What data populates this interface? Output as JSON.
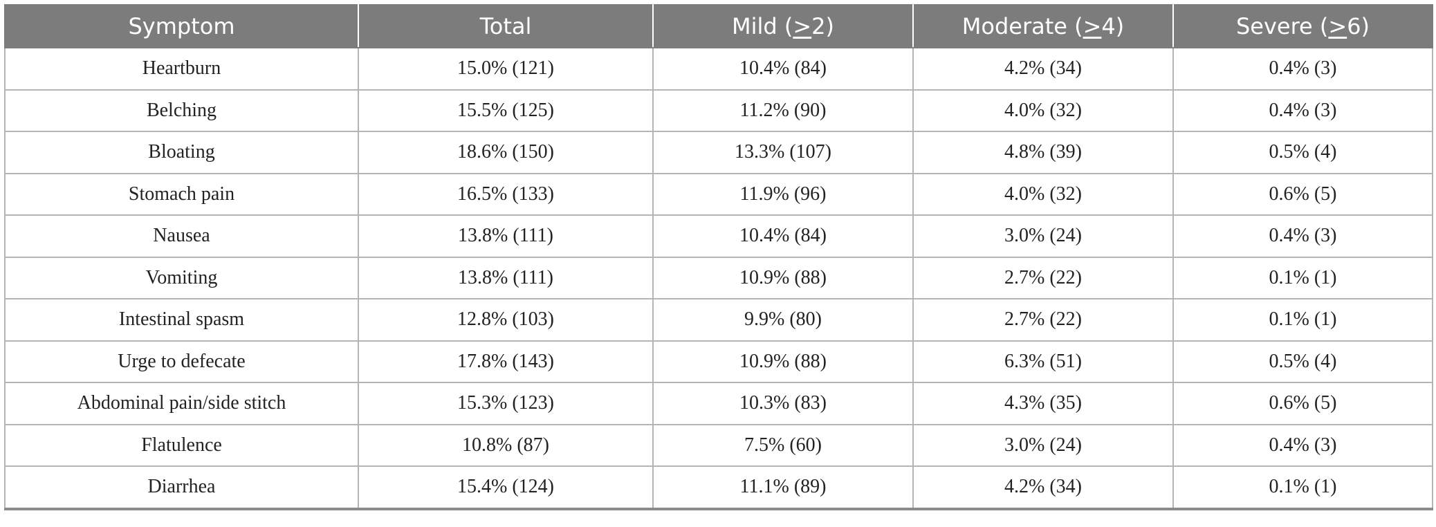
{
  "table": {
    "columns": [
      {
        "prefix": "Symptom",
        "ge": "",
        "suffix": ""
      },
      {
        "prefix": "Total",
        "ge": "",
        "suffix": ""
      },
      {
        "prefix": "Mild (",
        "ge": ">",
        "suffix": "2)"
      },
      {
        "prefix": "Moderate (",
        "ge": ">",
        "suffix": "4)"
      },
      {
        "prefix": "Severe (",
        "ge": ">",
        "suffix": "6)"
      }
    ],
    "rows": [
      [
        "Heartburn",
        "15.0% (121)",
        "10.4% (84)",
        "4.2% (34)",
        "0.4% (3)"
      ],
      [
        "Belching",
        "15.5% (125)",
        "11.2% (90)",
        "4.0% (32)",
        "0.4% (3)"
      ],
      [
        "Bloating",
        "18.6% (150)",
        "13.3% (107)",
        "4.8% (39)",
        "0.5% (4)"
      ],
      [
        "Stomach pain",
        "16.5% (133)",
        "11.9% (96)",
        "4.0% (32)",
        "0.6% (5)"
      ],
      [
        "Nausea",
        "13.8% (111)",
        "10.4% (84)",
        "3.0% (24)",
        "0.4% (3)"
      ],
      [
        "Vomiting",
        "13.8% (111)",
        "10.9% (88)",
        "2.7% (22)",
        "0.1% (1)"
      ],
      [
        "Intestinal spasm",
        "12.8% (103)",
        "9.9% (80)",
        "2.7% (22)",
        "0.1% (1)"
      ],
      [
        "Urge to defecate",
        "17.8% (143)",
        "10.9% (88)",
        "6.3% (51)",
        "0.5% (4)"
      ],
      [
        "Abdominal pain/side stitch",
        "15.3% (123)",
        "10.3% (83)",
        "4.3% (35)",
        "0.6% (5)"
      ],
      [
        "Flatulence",
        "10.8% (87)",
        "7.5% (60)",
        "3.0% (24)",
        "0.4% (3)"
      ],
      [
        "Diarrhea",
        "15.4% (124)",
        "11.1% (89)",
        "4.2% (34)",
        "0.1% (1)"
      ]
    ]
  }
}
